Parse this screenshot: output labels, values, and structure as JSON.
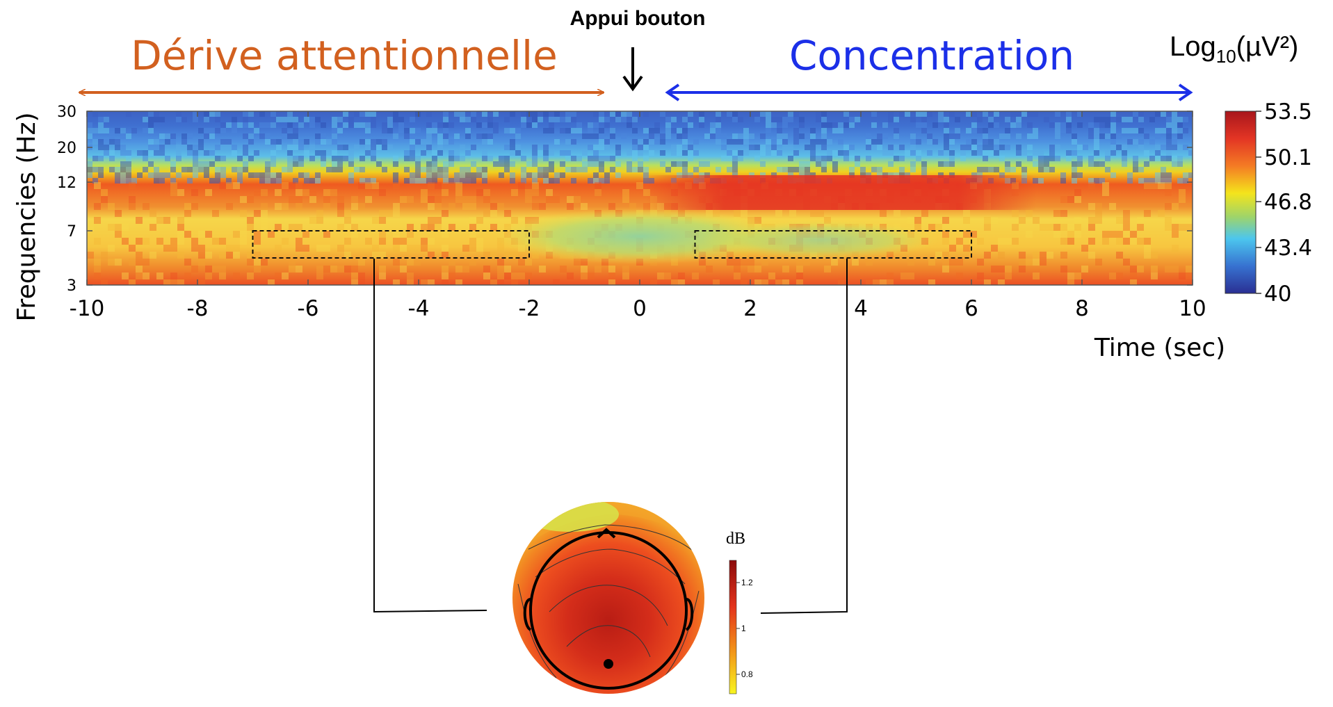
{
  "chart_data": {
    "type": "heatmap",
    "annotations": {
      "mind_wandering": {
        "text": "Dérive attentionnelle",
        "color": "#D2601F",
        "x_range": [
          -10,
          -0.5
        ]
      },
      "button_press": {
        "text": "Appui bouton",
        "x": 0
      },
      "concentration": {
        "text": "Concentration",
        "color": "#1B2FE8",
        "x_range": [
          0.5,
          10
        ]
      }
    },
    "xlabel": "Time (sec)",
    "ylabel": "Frequencies (Hz)",
    "xlim": [
      -10,
      10
    ],
    "xticks": [
      -10,
      -8,
      -6,
      -4,
      -2,
      0,
      2,
      4,
      6,
      8,
      10
    ],
    "yticks": [
      3,
      7,
      12,
      20,
      30
    ],
    "colorbar": {
      "label_base": "Log",
      "label_sub": "10",
      "label_rest": "(µV²)",
      "ticks": [
        53.5,
        50.1,
        46.8,
        43.4,
        40
      ],
      "range": [
        40,
        53.5
      ]
    },
    "selection_boxes": [
      {
        "x_range": [
          -7,
          -2
        ],
        "y_range": [
          5,
          7
        ]
      },
      {
        "x_range": [
          1,
          6
        ],
        "y_range": [
          5,
          7
        ]
      }
    ],
    "topomap": {
      "colorbar_label": "dB",
      "colorbar_ticks": [
        1.2,
        1,
        0.8
      ]
    }
  }
}
